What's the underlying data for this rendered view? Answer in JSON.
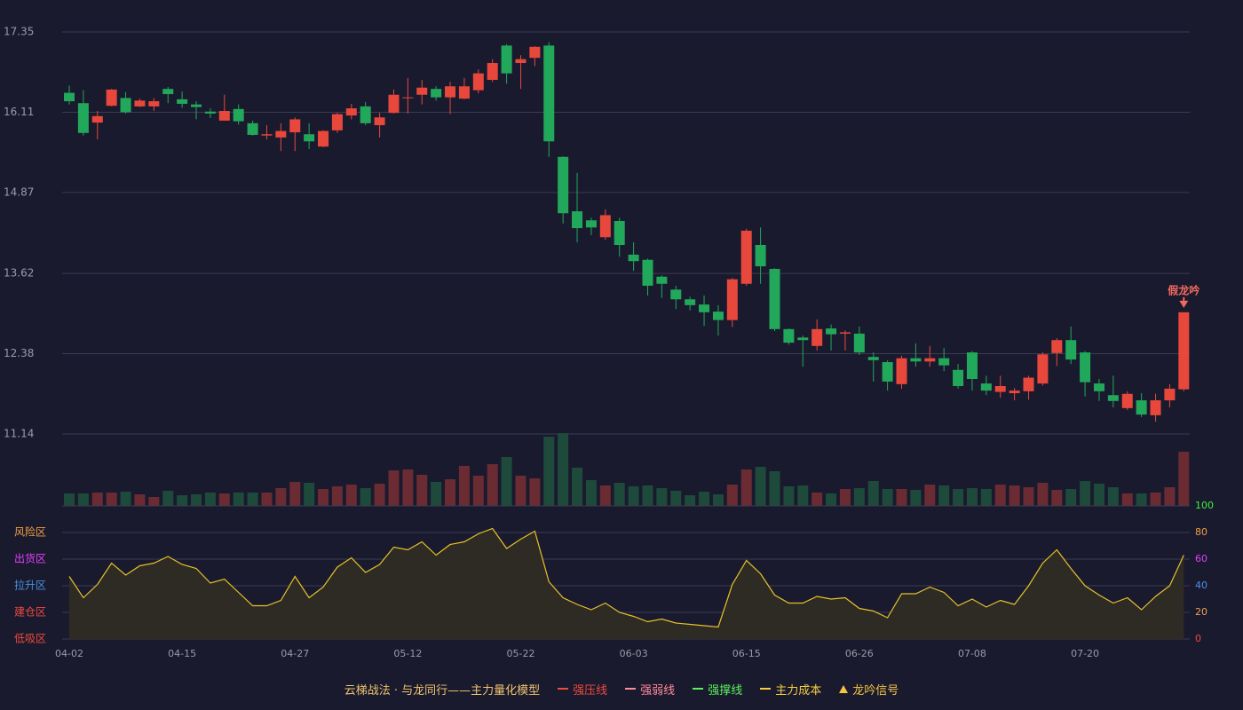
{
  "chart_data": [
    {
      "type": "candlestick",
      "categories": [
        "04-02",
        null,
        null,
        null,
        null,
        null,
        null,
        null,
        "04-15",
        null,
        null,
        null,
        null,
        null,
        null,
        null,
        "04-27",
        null,
        null,
        null,
        null,
        null,
        null,
        null,
        "05-12",
        null,
        null,
        null,
        null,
        null,
        null,
        null,
        "05-22",
        null,
        null,
        null,
        null,
        null,
        null,
        null,
        "06-03",
        null,
        null,
        null,
        null,
        null,
        null,
        null,
        "06-15",
        null,
        null,
        null,
        null,
        null,
        null,
        null,
        "06-26",
        null,
        null,
        null,
        null,
        null,
        null,
        null,
        "07-08",
        null,
        null,
        null,
        null,
        null,
        null,
        null,
        "07-20",
        null,
        null,
        null,
        null,
        null,
        null,
        null
      ],
      "open": [
        16.41,
        16.25,
        15.95,
        16.21,
        16.33,
        16.2,
        16.2,
        16.47,
        16.31,
        16.23,
        16.12,
        15.98,
        16.16,
        15.94,
        15.75,
        15.72,
        15.8,
        15.77,
        15.58,
        15.83,
        16.06,
        16.2,
        15.91,
        16.1,
        16.33,
        16.38,
        16.47,
        16.34,
        16.32,
        16.45,
        16.61,
        17.14,
        16.87,
        16.95,
        17.14,
        15.42,
        14.58,
        14.44,
        14.18,
        14.43,
        13.91,
        13.83,
        13.57,
        13.37,
        13.22,
        13.14,
        13.03,
        12.9,
        13.46,
        14.06,
        13.69,
        12.76,
        12.63,
        12.5,
        12.77,
        12.69,
        12.69,
        12.33,
        12.25,
        11.91,
        12.31,
        12.26,
        12.31,
        12.13,
        12.4,
        11.92,
        11.79,
        11.77,
        11.8,
        11.92,
        12.39,
        12.59,
        12.4,
        11.92,
        11.74,
        11.54,
        11.66,
        11.43,
        11.66,
        11.83
      ],
      "high": [
        16.52,
        16.45,
        16.13,
        16.47,
        16.42,
        16.32,
        16.33,
        16.5,
        16.43,
        16.28,
        16.17,
        16.38,
        16.23,
        15.98,
        15.91,
        15.94,
        16.03,
        15.94,
        15.83,
        16.1,
        16.24,
        16.27,
        16.1,
        16.46,
        16.64,
        16.61,
        16.51,
        16.58,
        16.64,
        16.77,
        16.93,
        17.16,
        16.99,
        17.13,
        17.19,
        15.43,
        15.17,
        14.48,
        14.61,
        14.48,
        14.1,
        13.85,
        13.59,
        13.43,
        13.26,
        13.28,
        13.13,
        13.55,
        14.31,
        14.33,
        13.7,
        12.77,
        12.66,
        12.91,
        12.83,
        12.74,
        12.8,
        12.4,
        12.28,
        12.35,
        12.54,
        12.5,
        12.47,
        12.22,
        12.42,
        12.04,
        12.04,
        11.85,
        12.04,
        12.4,
        12.62,
        12.8,
        12.42,
        11.99,
        12.04,
        11.8,
        11.77,
        11.76,
        11.91,
        13.02
      ],
      "low": [
        16.23,
        15.75,
        15.69,
        16.2,
        16.09,
        16.19,
        16.13,
        16.25,
        16.18,
        16.0,
        16.02,
        15.98,
        15.92,
        15.75,
        15.69,
        15.51,
        15.51,
        15.54,
        15.57,
        15.79,
        16.0,
        15.91,
        15.72,
        16.09,
        16.09,
        16.23,
        16.29,
        16.08,
        16.31,
        16.4,
        16.58,
        16.55,
        16.47,
        16.82,
        15.42,
        14.39,
        14.1,
        14.21,
        14.14,
        13.88,
        13.66,
        13.28,
        13.24,
        13.07,
        13.05,
        12.81,
        12.66,
        12.79,
        13.43,
        13.46,
        12.73,
        12.52,
        12.18,
        12.43,
        12.43,
        12.43,
        12.36,
        11.95,
        11.81,
        11.84,
        12.18,
        12.18,
        12.11,
        11.84,
        11.81,
        11.74,
        11.7,
        11.66,
        11.67,
        11.89,
        12.19,
        12.22,
        11.72,
        11.65,
        11.55,
        11.51,
        11.4,
        11.33,
        11.55,
        11.8
      ],
      "close": [
        16.28,
        15.79,
        16.05,
        16.46,
        16.11,
        16.29,
        16.28,
        16.39,
        16.24,
        16.19,
        16.09,
        16.13,
        15.97,
        15.76,
        15.77,
        15.82,
        16.0,
        15.66,
        15.82,
        16.08,
        16.17,
        15.94,
        16.03,
        16.38,
        16.34,
        16.49,
        16.34,
        16.51,
        16.51,
        16.71,
        16.87,
        16.71,
        16.93,
        17.12,
        15.66,
        14.55,
        14.32,
        14.33,
        14.52,
        14.06,
        13.81,
        13.43,
        13.46,
        13.22,
        13.13,
        13.02,
        12.9,
        13.53,
        14.28,
        13.73,
        12.76,
        12.55,
        12.59,
        12.76,
        12.68,
        12.71,
        12.4,
        12.28,
        11.95,
        12.31,
        12.26,
        12.31,
        12.2,
        11.88,
        11.99,
        11.81,
        11.88,
        11.81,
        12.01,
        12.37,
        12.59,
        12.29,
        11.94,
        11.8,
        11.65,
        11.76,
        11.44,
        11.66,
        11.84,
        13.02
      ],
      "ylim": [
        11.14,
        17.35
      ],
      "yticks": [
        17.35,
        16.11,
        14.87,
        13.62,
        12.38,
        11.14
      ],
      "up_color": "#e8483b",
      "down_color": "#22a85a",
      "grid": true,
      "annotation": "假龙吟",
      "annotation_color": "#f06a5e"
    },
    {
      "type": "bar",
      "up_color": "#6a2b33",
      "down_color": "#1d4a3b",
      "values": [
        14,
        14,
        15,
        15,
        16,
        13,
        10,
        17,
        12,
        13,
        15,
        14,
        15,
        15,
        15,
        20,
        27,
        26,
        19,
        22,
        24,
        20,
        25,
        40,
        41,
        35,
        27,
        30,
        45,
        34,
        47,
        55,
        34,
        31,
        78,
        82,
        43,
        29,
        23,
        26,
        22,
        23,
        20,
        17,
        12,
        16,
        13,
        24,
        41,
        44,
        39,
        22,
        23,
        15,
        14,
        19,
        20,
        28,
        19,
        19,
        18,
        24,
        23,
        19,
        20,
        19,
        24,
        23,
        21,
        26,
        18,
        19,
        28,
        25,
        21,
        14,
        14,
        15,
        21,
        61
      ]
    },
    {
      "type": "line",
      "color": "#e6c229",
      "area_color": "#2e2b25",
      "ylim": [
        0,
        100
      ],
      "yticks": [
        0,
        20,
        40,
        60,
        80,
        100
      ],
      "ytick_colors": [
        "#f0493e",
        "#f0a050",
        "#4a90e2",
        "#e040fb",
        "#f0a040",
        "#3cf03c"
      ],
      "zones": [
        {
          "label": "风险区",
          "value": 80,
          "color": "#f0a040"
        },
        {
          "label": "出货区",
          "value": 60,
          "color": "#e040fb"
        },
        {
          "label": "拉升区",
          "value": 40,
          "color": "#4a90e2"
        },
        {
          "label": "建仓区",
          "value": 20,
          "color": "#f0493e"
        },
        {
          "label": "低吸区",
          "value": 0,
          "color": "#f0493e"
        }
      ],
      "values": [
        47,
        31,
        41,
        57,
        48,
        55,
        57,
        62,
        56,
        53,
        42,
        45,
        35,
        25,
        25,
        29,
        47,
        31,
        39,
        54,
        61,
        50,
        56,
        69,
        67,
        73,
        63,
        71,
        73,
        79,
        83,
        68,
        75,
        81,
        43,
        31,
        26,
        22,
        27,
        20,
        17,
        13,
        15,
        12,
        11,
        10,
        9,
        41,
        59,
        49,
        33,
        27,
        27,
        32,
        30,
        31,
        23,
        21,
        16,
        34,
        34,
        39,
        35,
        25,
        30,
        24,
        29,
        26,
        40,
        57,
        67,
        53,
        40,
        33,
        27,
        31,
        22,
        32,
        40,
        63
      ]
    }
  ],
  "legend": {
    "title": "云梯战法 · 与龙同行——主力量化模型",
    "items": [
      {
        "name": "强压线",
        "color": "#f0493e",
        "style": "solid"
      },
      {
        "name": "强弱线",
        "color": "#ff8a9a",
        "style": "dashed"
      },
      {
        "name": "强撑线",
        "color": "#5af25a",
        "style": "solid"
      },
      {
        "name": "主力成本",
        "color": "#f5d03c",
        "style": "dashed"
      },
      {
        "name": "龙吟信号",
        "color": "#f5c542",
        "style": "triangle"
      }
    ]
  }
}
